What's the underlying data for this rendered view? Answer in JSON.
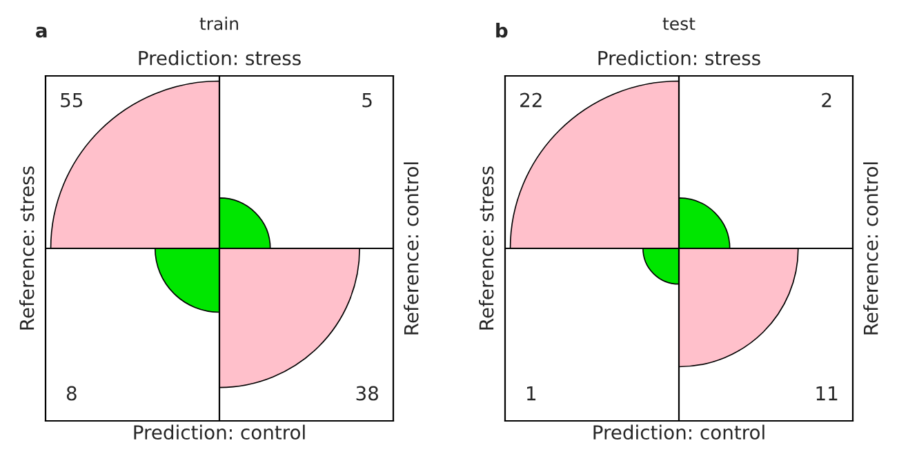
{
  "chart_data": [
    {
      "type": "other",
      "title": "train",
      "annotations": [
        "a"
      ],
      "x2label": "Prediction: stress",
      "xlabel": "Prediction: control",
      "ylabel": "Reference: stress",
      "y2label": "Reference: control",
      "values": [
        55,
        5,
        8,
        38
      ],
      "colors": [
        "#ffc0cb",
        "#00e600",
        "#00e600",
        "#ffc0cb"
      ],
      "data_labels": true
    },
    {
      "type": "other",
      "title": "test",
      "annotations": [
        "b"
      ],
      "x2label": "Prediction: stress",
      "xlabel": "Prediction: control",
      "ylabel": "Reference: stress",
      "y2label": "Reference: control",
      "values": [
        22,
        2,
        1,
        11
      ],
      "colors": [
        "#ffc0cb",
        "#00e600",
        "#00e600",
        "#ffc0cb"
      ],
      "data_labels": true
    }
  ]
}
